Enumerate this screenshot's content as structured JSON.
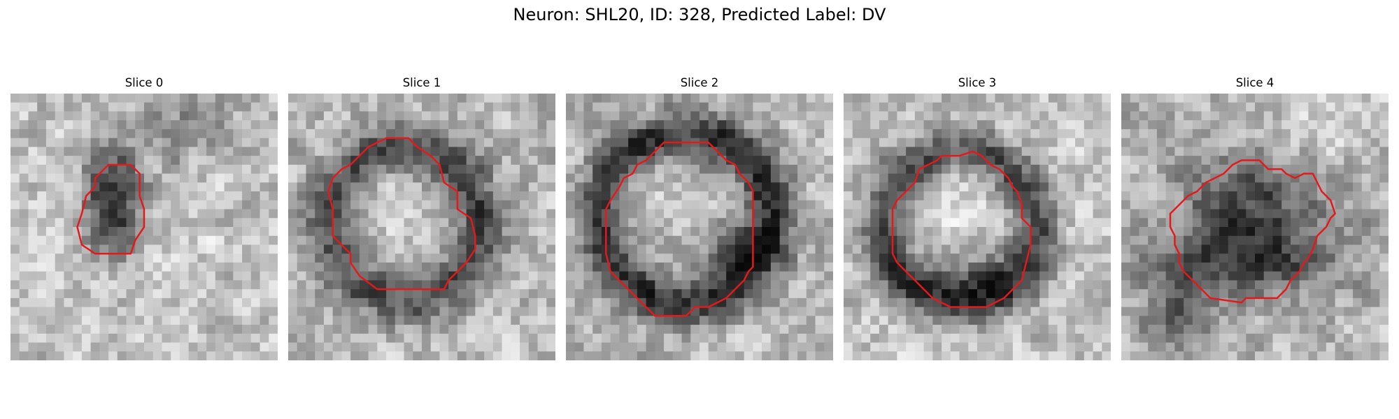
{
  "figure": {
    "title": "Neuron: SHL20, ID: 328, Predicted Label: DV",
    "contour_color": "#e31a1c"
  },
  "panels": [
    {
      "title": "Slice 0",
      "image": "grayscale-microscopy-patch"
    },
    {
      "title": "Slice 1",
      "image": "grayscale-microscopy-patch"
    },
    {
      "title": "Slice 2",
      "image": "grayscale-microscopy-patch"
    },
    {
      "title": "Slice 3",
      "image": "grayscale-microscopy-patch"
    },
    {
      "title": "Slice 4",
      "image": "grayscale-microscopy-patch"
    }
  ]
}
